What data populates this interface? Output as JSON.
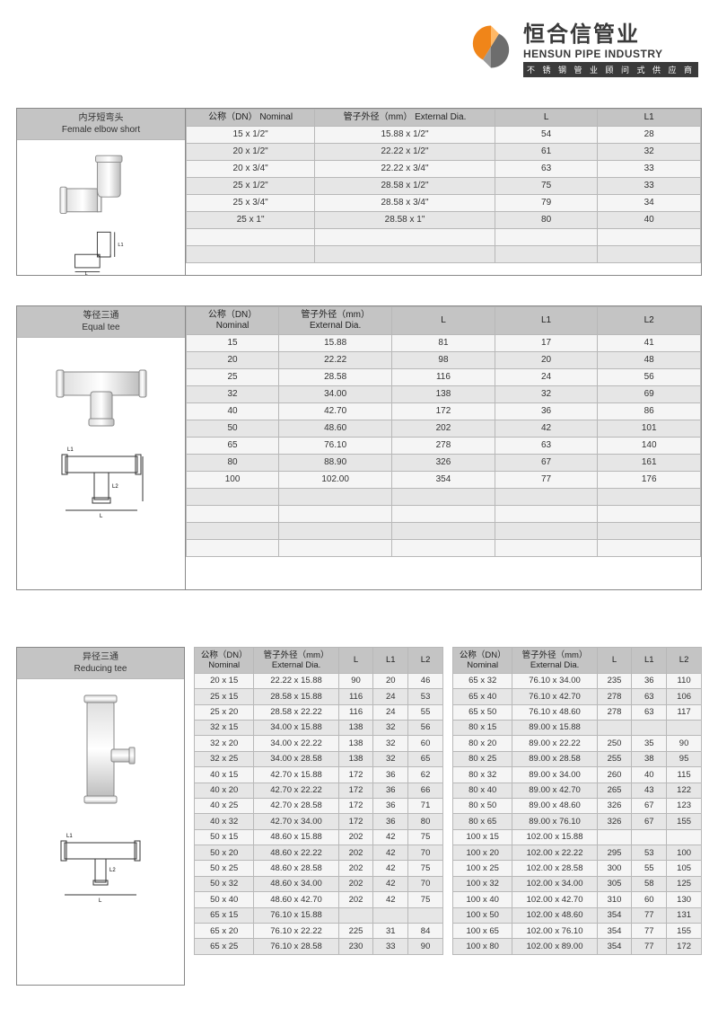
{
  "brand": {
    "name_cn": "恒合信管业",
    "name_en": "HENSUN PIPE INDUSTRY",
    "tagline": "不 锈 钢 管 业 顾 问 式 供 应 商",
    "logo_colors": {
      "orange": "#f08519",
      "grey": "#6d6d6d"
    }
  },
  "styling": {
    "header_bg": "#c4c4c4",
    "row_alt_bg": "#e6e6e6",
    "row_norm_bg": "#f5f5f5",
    "border_color": "#b8b8b8",
    "font_size_cell": 10,
    "font_size_header": 10
  },
  "table1": {
    "title_cn": "内牙短弯头",
    "title_en": "Female elbow short",
    "columns": [
      "公称（DN） Nominal",
      "管子外径（mm） External Dia.",
      "L",
      "L1"
    ],
    "rows": [
      [
        "15 x 1/2\"",
        "15.88 x 1/2\"",
        "54",
        "28"
      ],
      [
        "20 x 1/2\"",
        "22.22 x 1/2\"",
        "61",
        "32"
      ],
      [
        "20 x 3/4\"",
        "22.22 x 3/4\"",
        "63",
        "33"
      ],
      [
        "25 x 1/2\"",
        "28.58 x 1/2\"",
        "75",
        "33"
      ],
      [
        "25 x 3/4\"",
        "28.58 x 3/4\"",
        "79",
        "34"
      ],
      [
        "25 x 1\"",
        "28.58 x 1\"",
        "80",
        "40"
      ]
    ]
  },
  "table2": {
    "title_cn": "等径三通",
    "title_en": "Equal tee",
    "columns": [
      "公称（DN）\nNominal",
      "管子外径（mm）\nExternal Dia.",
      "L",
      "L1",
      "L2"
    ],
    "rows": [
      [
        "15",
        "15.88",
        "81",
        "17",
        "41"
      ],
      [
        "20",
        "22.22",
        "98",
        "20",
        "48"
      ],
      [
        "25",
        "28.58",
        "116",
        "24",
        "56"
      ],
      [
        "32",
        "34.00",
        "138",
        "32",
        "69"
      ],
      [
        "40",
        "42.70",
        "172",
        "36",
        "86"
      ],
      [
        "50",
        "48.60",
        "202",
        "42",
        "101"
      ],
      [
        "65",
        "76.10",
        "278",
        "63",
        "140"
      ],
      [
        "80",
        "88.90",
        "326",
        "67",
        "161"
      ],
      [
        "100",
        "102.00",
        "354",
        "77",
        "176"
      ]
    ]
  },
  "table3": {
    "title_cn": "异径三通",
    "title_en": "Reducing tee",
    "columns": [
      "公称（DN）\nNominal",
      "管子外径（mm）\nExternal Dia.",
      "L",
      "L1",
      "L2"
    ],
    "rows_left": [
      [
        "20 x 15",
        "22.22 x 15.88",
        "90",
        "20",
        "46"
      ],
      [
        "25 x 15",
        "28.58 x 15.88",
        "116",
        "24",
        "53"
      ],
      [
        "25 x 20",
        "28.58 x 22.22",
        "116",
        "24",
        "55"
      ],
      [
        "32 x 15",
        "34.00 x 15.88",
        "138",
        "32",
        "56"
      ],
      [
        "32 x 20",
        "34.00 x 22.22",
        "138",
        "32",
        "60"
      ],
      [
        "32 x 25",
        "34.00 x 28.58",
        "138",
        "32",
        "65"
      ],
      [
        "40 x 15",
        "42.70 x 15.88",
        "172",
        "36",
        "62"
      ],
      [
        "40 x 20",
        "42.70 x 22.22",
        "172",
        "36",
        "66"
      ],
      [
        "40 x 25",
        "42.70 x 28.58",
        "172",
        "36",
        "71"
      ],
      [
        "40 x 32",
        "42.70 x 34.00",
        "172",
        "36",
        "80"
      ],
      [
        "50 x 15",
        "48.60 x 15.88",
        "202",
        "42",
        "75"
      ],
      [
        "50 x 20",
        "48.60 x 22.22",
        "202",
        "42",
        "70"
      ],
      [
        "50 x 25",
        "48.60 x 28.58",
        "202",
        "42",
        "75"
      ],
      [
        "50 x 32",
        "48.60 x 34.00",
        "202",
        "42",
        "70"
      ],
      [
        "50 x 40",
        "48.60 x 42.70",
        "202",
        "42",
        "75"
      ],
      [
        "65 x 15",
        "76.10 x 15.88",
        "",
        "",
        ""
      ],
      [
        "65 x 20",
        "76.10 x 22.22",
        "225",
        "31",
        "84"
      ],
      [
        "65 x 25",
        "76.10 x 28.58",
        "230",
        "33",
        "90"
      ]
    ],
    "rows_right": [
      [
        "65 x 32",
        "76.10 x 34.00",
        "235",
        "36",
        "110"
      ],
      [
        "65 x 40",
        "76.10 x 42.70",
        "278",
        "63",
        "106"
      ],
      [
        "65 x 50",
        "76.10 x 48.60",
        "278",
        "63",
        "117"
      ],
      [
        "80 x 15",
        "89.00 x 15.88",
        "",
        "",
        ""
      ],
      [
        "80 x 20",
        "89.00 x 22.22",
        "250",
        "35",
        "90"
      ],
      [
        "80 x 25",
        "89.00 x 28.58",
        "255",
        "38",
        "95"
      ],
      [
        "80 x 32",
        "89.00 x 34.00",
        "260",
        "40",
        "115"
      ],
      [
        "80 x 40",
        "89.00 x 42.70",
        "265",
        "43",
        "122"
      ],
      [
        "80 x 50",
        "89.00 x 48.60",
        "326",
        "67",
        "123"
      ],
      [
        "80 x 65",
        "89.00 x 76.10",
        "326",
        "67",
        "155"
      ],
      [
        "100 x 15",
        "102.00 x 15.88",
        "",
        "",
        ""
      ],
      [
        "100 x 20",
        "102.00 x 22.22",
        "295",
        "53",
        "100"
      ],
      [
        "100 x 25",
        "102.00 x 28.58",
        "300",
        "55",
        "105"
      ],
      [
        "100 x 32",
        "102.00 x 34.00",
        "305",
        "58",
        "125"
      ],
      [
        "100 x 40",
        "102.00 x 42.70",
        "310",
        "60",
        "130"
      ],
      [
        "100 x 50",
        "102.00 x 48.60",
        "354",
        "77",
        "131"
      ],
      [
        "100 x 65",
        "102.00 x 76.10",
        "354",
        "77",
        "155"
      ],
      [
        "100 x 80",
        "102.00 x 89.00",
        "354",
        "77",
        "172"
      ]
    ]
  }
}
